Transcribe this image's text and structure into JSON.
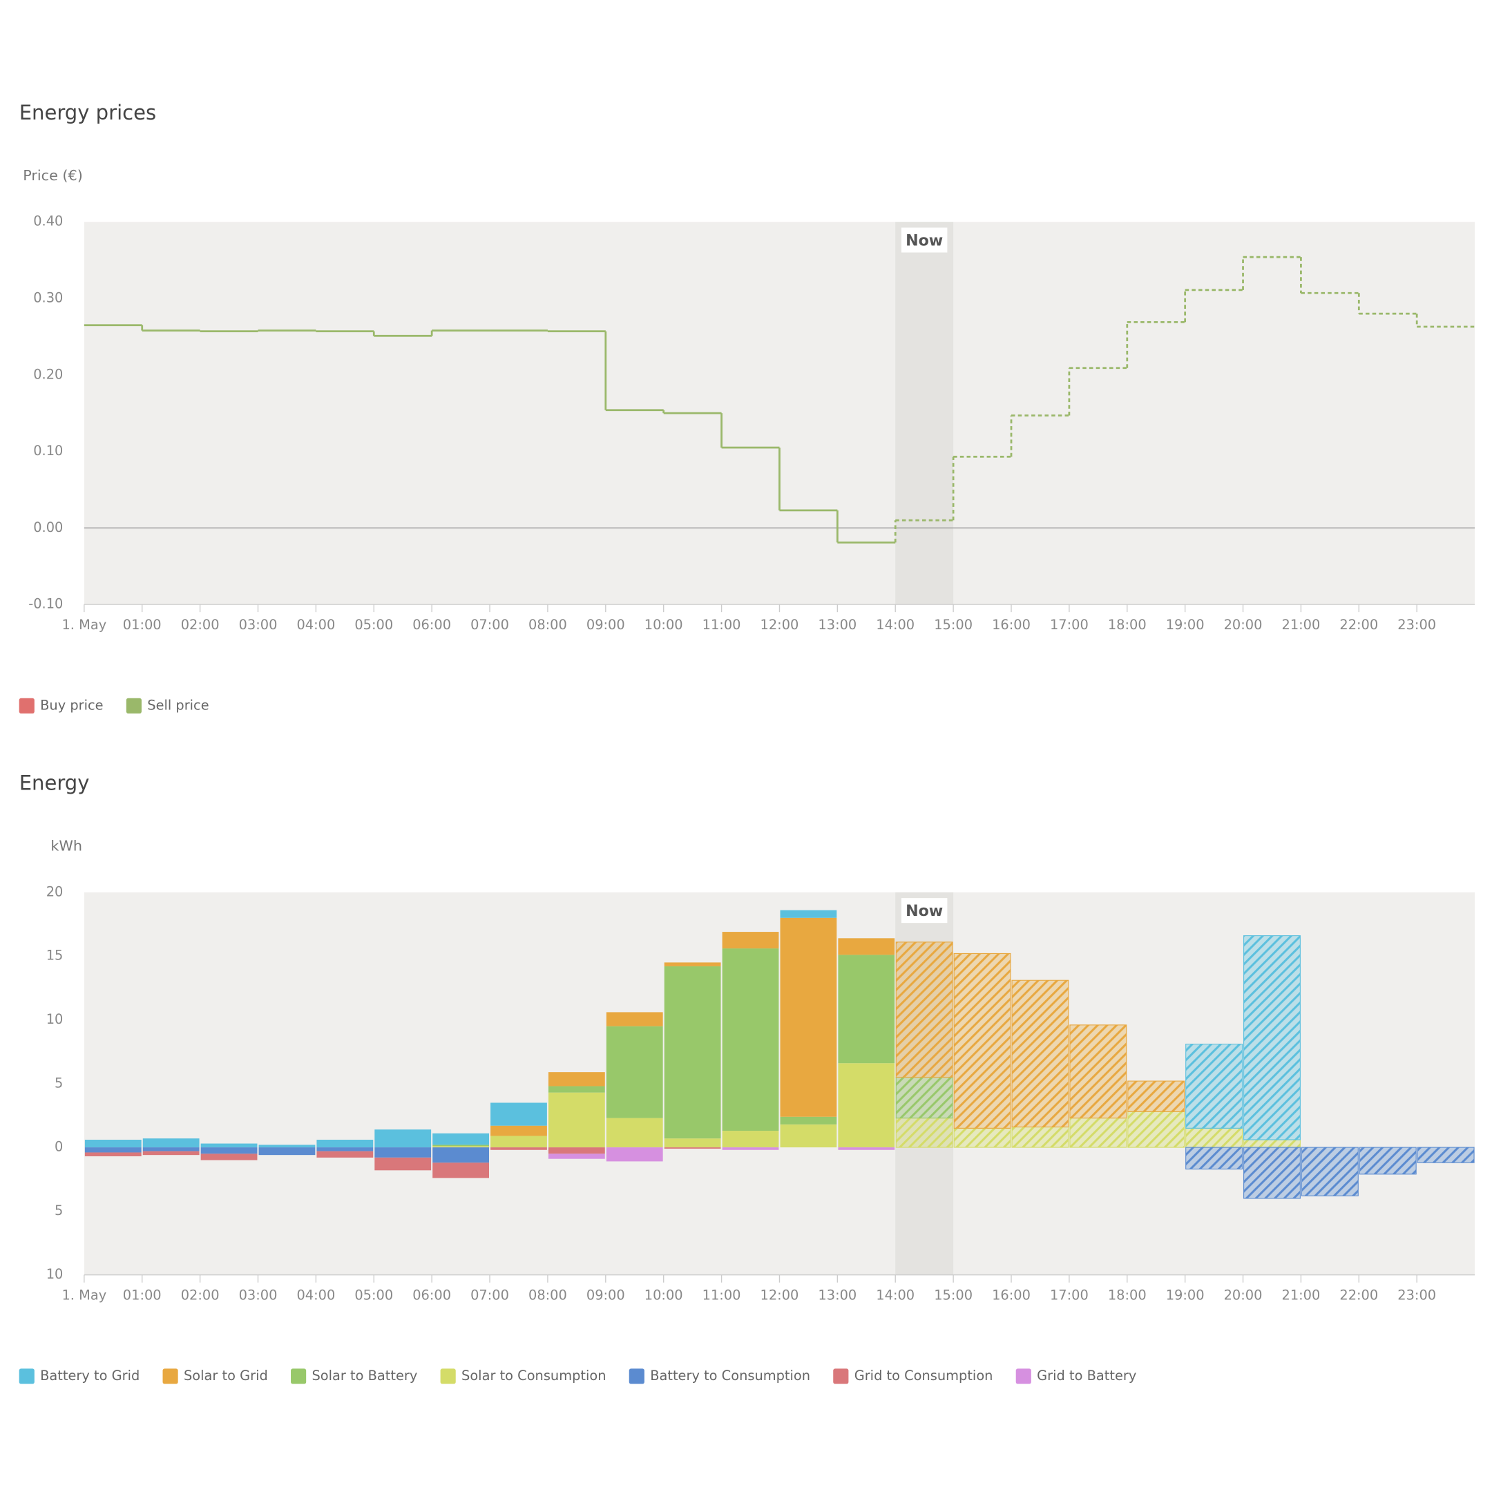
{
  "chart_data": [
    {
      "type": "line",
      "title": "Energy prices",
      "ylabel": "Price (€)",
      "categories": [
        "1. May",
        "01:00",
        "02:00",
        "03:00",
        "04:00",
        "05:00",
        "06:00",
        "07:00",
        "08:00",
        "09:00",
        "10:00",
        "11:00",
        "12:00",
        "13:00",
        "14:00",
        "15:00",
        "16:00",
        "17:00",
        "18:00",
        "19:00",
        "20:00",
        "21:00",
        "22:00",
        "23:00"
      ],
      "series": [
        {
          "name": "Buy price",
          "color": "#e0706e",
          "values": [
            null,
            null,
            null,
            null,
            null,
            null,
            null,
            null,
            null,
            null,
            null,
            null,
            null,
            null,
            null,
            null,
            null,
            null,
            null,
            null,
            null,
            null,
            null,
            null
          ]
        },
        {
          "name": "Sell price",
          "color": "#9ab86a",
          "values": [
            0.265,
            0.258,
            0.257,
            0.258,
            0.257,
            0.251,
            0.258,
            0.258,
            0.257,
            0.154,
            0.15,
            0.105,
            0.023,
            -0.019,
            0.01,
            0.093,
            0.147,
            0.209,
            0.269,
            0.311,
            0.354,
            0.307,
            0.28,
            0.263
          ]
        }
      ],
      "ylim": [
        -0.1,
        0.4
      ],
      "yticks": [
        {
          "value": 0.4,
          "label": "0.40"
        },
        {
          "value": 0.3,
          "label": "0.30"
        },
        {
          "value": 0.2,
          "label": "0.20"
        },
        {
          "value": 0.1,
          "label": "0.10"
        },
        {
          "value": 0,
          "label": "0.00"
        },
        {
          "value": -0.1,
          "label": "-0.10"
        }
      ],
      "now": {
        "label": "Now",
        "category": "14:00"
      }
    },
    {
      "type": "bar",
      "stacked": true,
      "title": "Energy",
      "ylabel": "kWh",
      "categories": [
        "1. May",
        "01:00",
        "02:00",
        "03:00",
        "04:00",
        "05:00",
        "06:00",
        "07:00",
        "08:00",
        "09:00",
        "10:00",
        "11:00",
        "12:00",
        "13:00",
        "14:00",
        "15:00",
        "16:00",
        "17:00",
        "18:00",
        "19:00",
        "20:00",
        "21:00",
        "22:00",
        "23:00"
      ],
      "series": [
        {
          "name": "Battery to Grid",
          "color": "#5bc0de",
          "values": [
            0.6,
            0.7,
            0.3,
            0.2,
            0.6,
            1.4,
            0.9,
            1.8,
            0,
            0,
            0,
            0,
            0.6,
            0,
            0,
            0,
            0,
            0,
            0,
            6.6,
            16.0,
            0,
            0,
            0
          ]
        },
        {
          "name": "Solar to Grid",
          "color": "#e8a840",
          "values": [
            0,
            0,
            0,
            0,
            0,
            0,
            0,
            0.8,
            1.1,
            1.1,
            0.3,
            1.3,
            15.6,
            1.3,
            10.6,
            13.7,
            11.5,
            7.3,
            2.4,
            0,
            0,
            0,
            0,
            0
          ]
        },
        {
          "name": "Solar to Battery",
          "color": "#98c86a",
          "values": [
            0,
            0,
            0,
            0,
            0,
            0,
            0.1,
            0,
            0.5,
            7.2,
            13.5,
            14.3,
            0.6,
            8.5,
            3.2,
            0,
            0,
            0,
            0,
            0,
            0,
            0,
            0,
            0
          ]
        },
        {
          "name": "Solar to Consumption",
          "color": "#d4dc68",
          "values": [
            0,
            0,
            0,
            0,
            0,
            0,
            0.1,
            0.9,
            4.3,
            2.3,
            0.7,
            1.3,
            1.8,
            6.6,
            2.3,
            1.5,
            1.6,
            2.3,
            2.8,
            1.5,
            0.6,
            0,
            0,
            0
          ]
        },
        {
          "name": "Battery to Consumption",
          "color": "#5b8bd0",
          "values": [
            -0.4,
            -0.3,
            -0.5,
            -0.6,
            -0.3,
            -0.8,
            -1.2,
            0,
            0,
            0,
            0,
            0,
            0,
            0,
            0,
            0,
            0,
            0,
            0,
            -1.7,
            -4.0,
            -3.8,
            -2.1,
            -1.2
          ]
        },
        {
          "name": "Grid to Consumption",
          "color": "#d9777a",
          "values": [
            -0.3,
            -0.3,
            -0.5,
            0,
            -0.5,
            -1.0,
            -1.2,
            -0.2,
            -0.5,
            0,
            -0.1,
            0,
            0,
            0,
            0,
            0,
            0,
            0,
            0,
            0,
            0,
            0,
            0,
            0
          ]
        },
        {
          "name": "Grid to Battery",
          "color": "#d690e0",
          "values": [
            0,
            0,
            0,
            0,
            0,
            0,
            0,
            0,
            -0.4,
            -1.1,
            0,
            -0.2,
            0,
            -0.2,
            0,
            0,
            0,
            0,
            0,
            0,
            0,
            0,
            0,
            0
          ]
        }
      ],
      "ylim": [
        -10,
        20
      ],
      "yticks": [
        20,
        15,
        10,
        5,
        0,
        {
          "value": -5,
          "label": "5"
        },
        {
          "value": -10,
          "label": "10"
        }
      ],
      "now": {
        "label": "Now",
        "category": "14:00"
      }
    }
  ]
}
